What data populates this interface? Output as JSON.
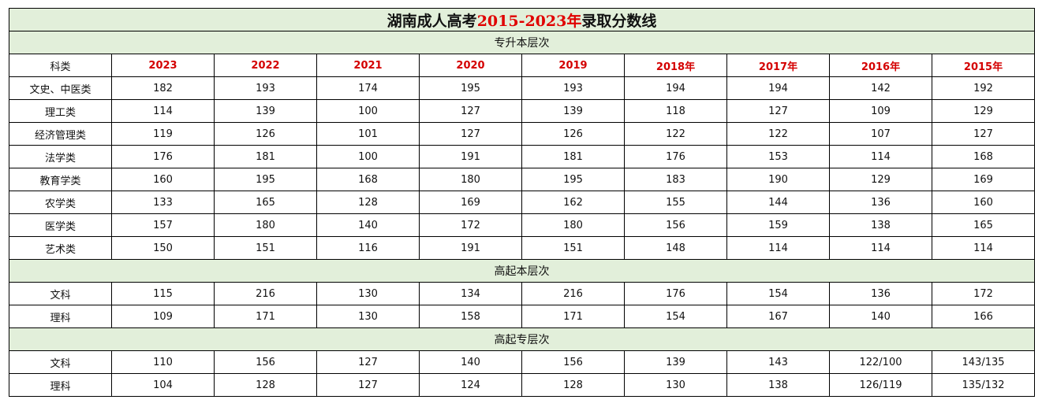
{
  "title": {
    "part1": "湖南成人高考",
    "part2": "2015-2023年",
    "part3": "录取分数线"
  },
  "header": [
    "科类",
    "2023",
    "2022",
    "2021",
    "2020",
    "2019",
    "2018年",
    "2017年",
    "2016年",
    "2015年"
  ],
  "colors": {
    "section_bg": "#e2efda",
    "year_header": "#d40000"
  },
  "sections": [
    {
      "name": "专升本层次",
      "rows": [
        [
          "文史、中医类",
          "182",
          "193",
          "174",
          "195",
          "193",
          "194",
          "194",
          "142",
          "192"
        ],
        [
          "理工类",
          "114",
          "139",
          "100",
          "127",
          "139",
          "118",
          "127",
          "109",
          "129"
        ],
        [
          "经济管理类",
          "119",
          "126",
          "101",
          "127",
          "126",
          "122",
          "122",
          "107",
          "127"
        ],
        [
          "法学类",
          "176",
          "181",
          "100",
          "191",
          "181",
          "176",
          "153",
          "114",
          "168"
        ],
        [
          "教育学类",
          "160",
          "195",
          "168",
          "180",
          "195",
          "183",
          "190",
          "129",
          "169"
        ],
        [
          "农学类",
          "133",
          "165",
          "128",
          "169",
          "162",
          "155",
          "144",
          "136",
          "160"
        ],
        [
          "医学类",
          "157",
          "180",
          "140",
          "172",
          "180",
          "156",
          "159",
          "138",
          "165"
        ],
        [
          "艺术类",
          "150",
          "151",
          "116",
          "191",
          "151",
          "148",
          "114",
          "114",
          "114"
        ]
      ]
    },
    {
      "name": "高起本层次",
      "rows": [
        [
          "文科",
          "115",
          "216",
          "130",
          "134",
          "216",
          "176",
          "154",
          "136",
          "172"
        ],
        [
          "理科",
          "109",
          "171",
          "130",
          "158",
          "171",
          "154",
          "167",
          "140",
          "166"
        ]
      ]
    },
    {
      "name": "高起专层次",
      "rows": [
        [
          "文科",
          "110",
          "156",
          "127",
          "140",
          "156",
          "139",
          "143",
          "122/100",
          "143/135"
        ],
        [
          "理科",
          "104",
          "128",
          "127",
          "124",
          "128",
          "130",
          "138",
          "126/119",
          "135/132"
        ]
      ]
    }
  ]
}
